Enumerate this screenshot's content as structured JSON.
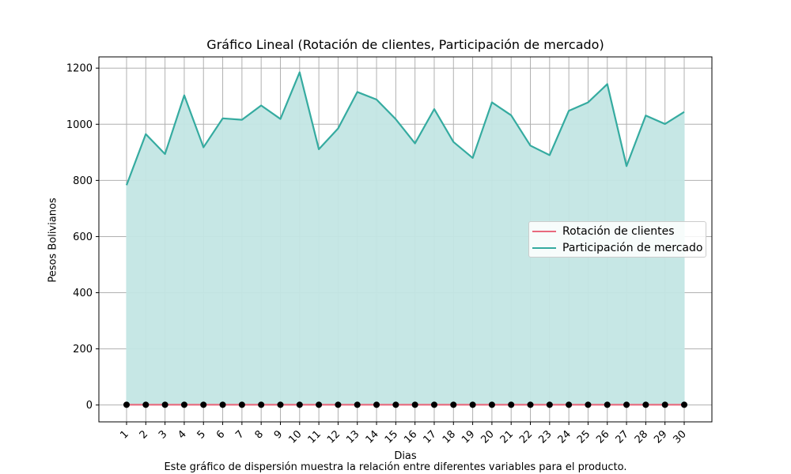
{
  "chart_data": {
    "type": "line",
    "title": "Gráfico Lineal (Rotación de clientes, Participación de mercado)",
    "xlabel": "Dias",
    "ylabel": "Pesos Bolivianos",
    "caption": "Este gráfico de dispersión muestra la relación entre diferentes variables para el producto.",
    "categories": [
      "1",
      "2",
      "3",
      "4",
      "5",
      "6",
      "7",
      "8",
      "9",
      "10",
      "11",
      "12",
      "13",
      "14",
      "15",
      "16",
      "17",
      "18",
      "19",
      "20",
      "21",
      "22",
      "23",
      "24",
      "25",
      "26",
      "27",
      "28",
      "29",
      "30"
    ],
    "ylim": [
      -60,
      1240
    ],
    "yticks": [
      0,
      200,
      400,
      600,
      800,
      1000,
      1200
    ],
    "grid": true,
    "legend_position": "center-right",
    "series": [
      {
        "name": "Rotación de clientes",
        "color": "#e8697d",
        "marker_color": "#000000",
        "values": [
          1,
          1,
          1,
          1,
          1,
          1,
          1,
          1,
          1,
          1,
          1,
          1,
          1,
          1,
          1,
          1,
          1,
          1,
          1,
          1,
          1,
          1,
          1,
          1,
          1,
          1,
          1,
          1,
          1,
          1
        ]
      },
      {
        "name": "Participación de mercado",
        "color": "#35aba0",
        "fill": "#c3e6e4",
        "values": [
          783,
          965,
          894,
          1103,
          918,
          1021,
          1016,
          1067,
          1019,
          1185,
          911,
          985,
          1115,
          1088,
          1018,
          932,
          1054,
          937,
          880,
          1078,
          1032,
          924,
          890,
          1048,
          1078,
          1143,
          851,
          1031,
          1001,
          1044
        ]
      }
    ]
  }
}
